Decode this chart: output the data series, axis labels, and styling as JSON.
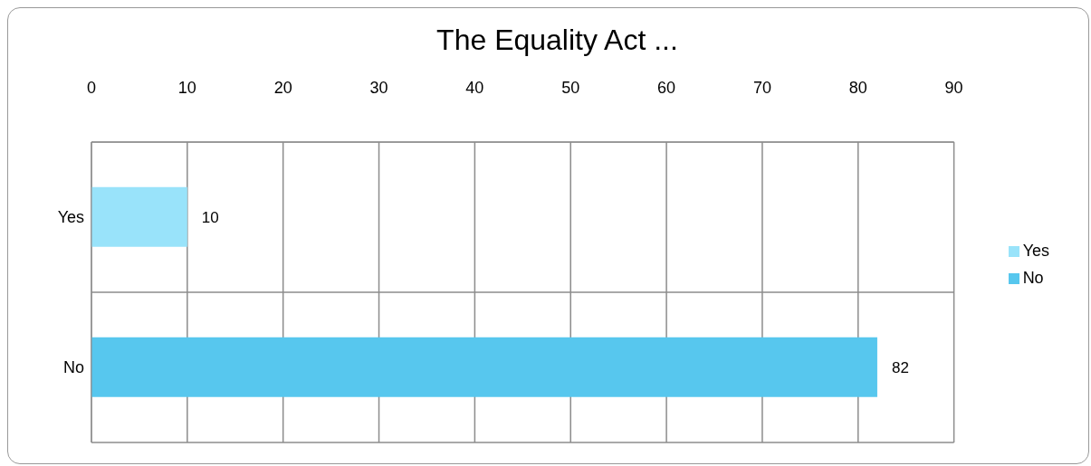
{
  "chart_data": {
    "type": "bar",
    "orientation": "horizontal",
    "stacked": true,
    "title": "The Equality Act ...",
    "categories": [
      "Yes",
      "No"
    ],
    "series": [
      {
        "name": "Yes",
        "color": "#99e3fa",
        "values": [
          10,
          null
        ]
      },
      {
        "name": "No",
        "color": "#57c7ee",
        "values": [
          null,
          82
        ]
      }
    ],
    "xlim": [
      0,
      90
    ],
    "xticks": [
      0,
      10,
      20,
      30,
      40,
      50,
      60,
      70,
      80,
      90
    ],
    "grid": true,
    "legend": "right",
    "data_labels": true
  }
}
